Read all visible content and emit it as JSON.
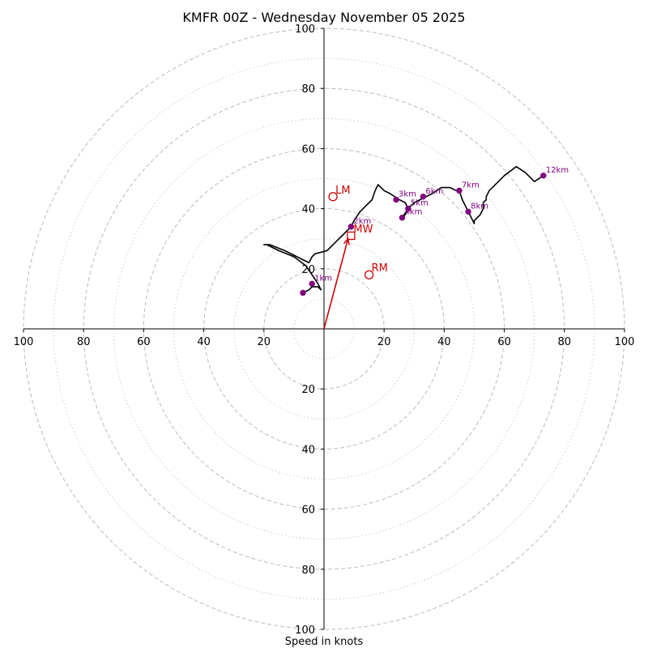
{
  "chart_data": {
    "type": "line",
    "title": "KMFR 00Z - Wednesday November 05 2025",
    "xlabel": "Speed in knots",
    "ylabel": "",
    "xlim": [
      -100,
      100
    ],
    "ylim": [
      -100,
      100
    ],
    "ring_major": [
      20,
      40,
      60,
      80,
      100
    ],
    "ring_minor": [
      10,
      30,
      50,
      70,
      90
    ],
    "ticks": [
      -100,
      -80,
      -60,
      -40,
      -20,
      20,
      40,
      60,
      80,
      100
    ],
    "grid": true,
    "colors": {
      "trace": "#000000",
      "marker": "#800080",
      "motion": "#cc0000",
      "grid": "#bbbbbb"
    },
    "hodograph": {
      "u": [
        -7,
        -5,
        -4,
        -3,
        -2,
        -1,
        -2,
        -4,
        -6,
        -10,
        -15,
        -19,
        -20,
        -18,
        -13,
        -5,
        -4,
        -3,
        1,
        4,
        6,
        8,
        9,
        10,
        12,
        14,
        16,
        17,
        18,
        20,
        22,
        25,
        27,
        28,
        27,
        26,
        28,
        30,
        32,
        34,
        36,
        39,
        42,
        44,
        45,
        46,
        47,
        48,
        49,
        50,
        50,
        51,
        52,
        53,
        53,
        54,
        54,
        55,
        57,
        60,
        64,
        67,
        70,
        73
      ],
      "v": [
        12,
        13,
        14,
        14,
        14,
        13,
        15,
        18,
        21,
        24,
        26,
        28,
        28,
        28,
        26,
        22,
        24,
        25,
        26,
        29,
        31,
        33,
        34,
        36,
        39,
        41,
        43,
        46,
        48,
        46,
        45,
        43,
        42,
        40,
        38,
        37,
        40,
        42,
        43,
        44,
        45,
        47,
        47,
        46,
        46,
        43,
        41,
        39,
        37,
        35,
        36,
        37,
        38,
        40,
        42,
        43,
        44,
        46,
        48,
        51,
        54,
        52,
        49,
        51
      ]
    },
    "height_markers": [
      {
        "label": "",
        "u": -7,
        "v": 12
      },
      {
        "label": "1km",
        "u": -4,
        "v": 15
      },
      {
        "label": "2km",
        "u": 9,
        "v": 34
      },
      {
        "label": "3km",
        "u": 24,
        "v": 43
      },
      {
        "label": "4km",
        "u": 26,
        "v": 37
      },
      {
        "label": "5km",
        "u": 28,
        "v": 40
      },
      {
        "label": "6km",
        "u": 33,
        "v": 44
      },
      {
        "label": "7km",
        "u": 45,
        "v": 46
      },
      {
        "label": "8km",
        "u": 48,
        "v": 39
      },
      {
        "label": "12km",
        "u": 73,
        "v": 51
      }
    ],
    "storm_motion": [
      {
        "label": "LM",
        "u": 3,
        "v": 44,
        "shape": "circle"
      },
      {
        "label": "RM",
        "u": 15,
        "v": 18,
        "shape": "circle"
      },
      {
        "label": "MW",
        "u": 9,
        "v": 31,
        "shape": "square"
      }
    ],
    "motion_vector": {
      "u": 8,
      "v": 30
    }
  }
}
